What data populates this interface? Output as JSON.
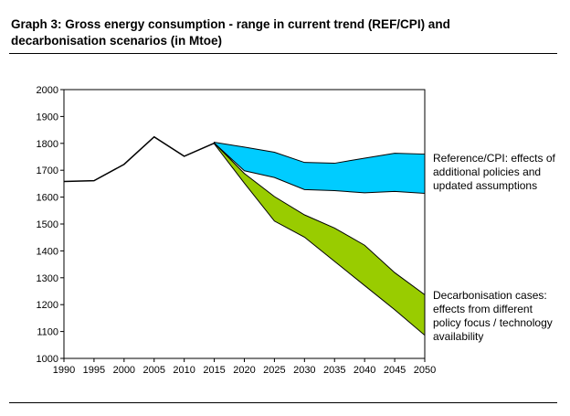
{
  "chart_data": {
    "type": "area",
    "title": "Graph 3: Gross energy consumption - range in current trend (REF/CPI) and decarbonisation scenarios (in Mtoe)",
    "xlabel": "",
    "ylabel": "",
    "xlim": [
      1990,
      2050
    ],
    "ylim": [
      1000,
      2000
    ],
    "x_ticks": [
      "1990",
      "1995",
      "2000",
      "2005",
      "2010",
      "2015",
      "2020",
      "2025",
      "2030",
      "2035",
      "2040",
      "2045",
      "2050"
    ],
    "y_ticks": [
      "1000",
      "1100",
      "1200",
      "1300",
      "1400",
      "1500",
      "1600",
      "1700",
      "1800",
      "1900",
      "2000"
    ],
    "grid": false,
    "historical": {
      "x": [
        1990,
        1995,
        2000,
        2005,
        2010,
        2015
      ],
      "y": [
        1658,
        1661,
        1722,
        1824,
        1752,
        1801
      ]
    },
    "bands": [
      {
        "name": "Reference/CPI: effects of additional policies and updated assumptions",
        "color": "#00ccff",
        "x": [
          2015,
          2020,
          2025,
          2030,
          2035,
          2040,
          2045,
          2050
        ],
        "upper": [
          1804,
          1786,
          1767,
          1729,
          1726,
          1745,
          1763,
          1760
        ],
        "lower": [
          1801,
          1698,
          1673,
          1628,
          1624,
          1616,
          1621,
          1614
        ]
      },
      {
        "name": "Decarbonisation cases: effects from different policy focus / technology availability",
        "color": "#99cc00",
        "x": [
          2015,
          2020,
          2025,
          2030,
          2035,
          2040,
          2045,
          2050
        ],
        "upper": [
          1801,
          1688,
          1602,
          1534,
          1485,
          1421,
          1319,
          1237
        ],
        "lower": [
          1798,
          1652,
          1511,
          1451,
          1361,
          1271,
          1181,
          1086
        ]
      }
    ]
  },
  "annotations": {
    "ref": [
      "Reference/CPI: effects of",
      "additional policies and",
      "updated assumptions"
    ],
    "decarb": [
      "Decarbonisation cases:",
      "effects from different",
      "policy focus / technology",
      "availability"
    ]
  }
}
